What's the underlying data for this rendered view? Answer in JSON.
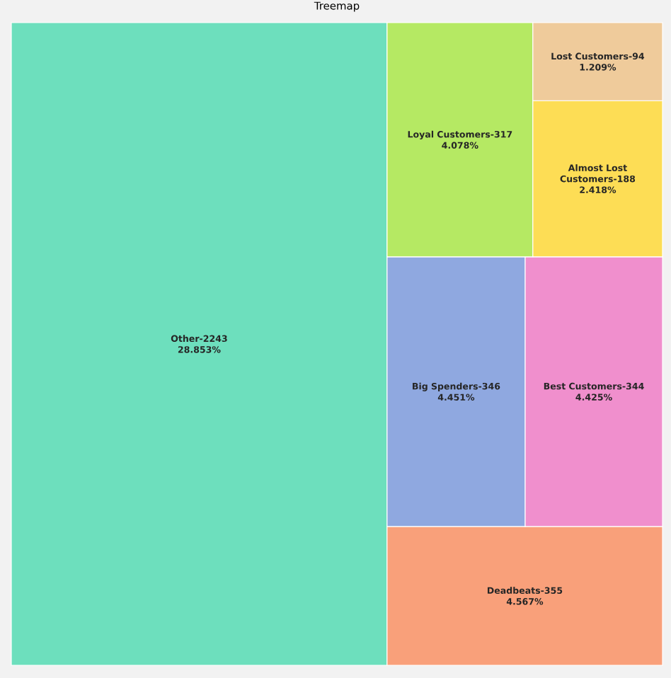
{
  "chart_data": {
    "type": "other",
    "title": "Treemap",
    "categories": [
      "Other-2243",
      "Deadbeats-355",
      "Big Spenders-346",
      "Best Customers-344",
      "Loyal Customers-317",
      "Almost Lost Customers-188",
      "Lost Customers-94"
    ],
    "values": [
      28.853,
      4.567,
      4.451,
      4.425,
      4.078,
      2.418,
      1.209
    ],
    "value_labels": [
      "28.853%",
      "4.567%",
      "4.451%",
      "4.425%",
      "4.078%",
      "2.418%",
      "1.209%"
    ],
    "colors": [
      "#6ddfbd",
      "#f9a07a",
      "#8fa8e0",
      "#f08fcd",
      "#b5e963",
      "#fddd55",
      "#efcb9b"
    ]
  }
}
